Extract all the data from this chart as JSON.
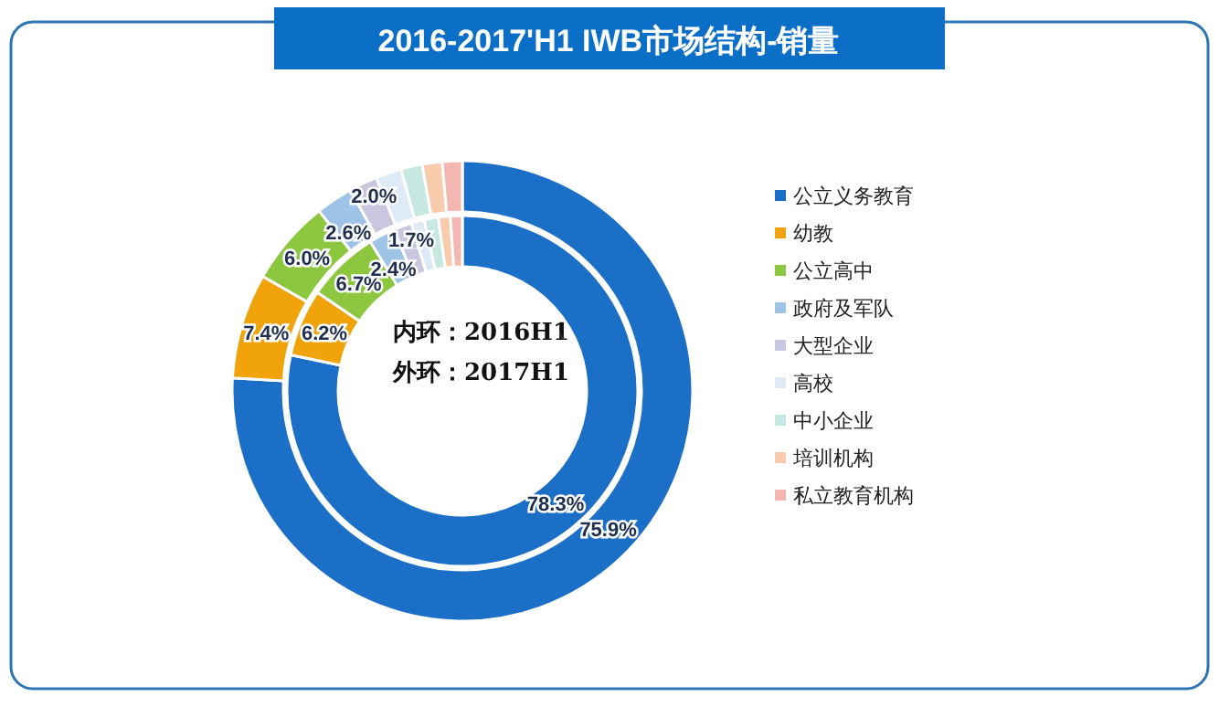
{
  "chart_data": {
    "type": "donut",
    "title": "2016-2017'H1 IWB市场结构-销量",
    "categories": [
      "公立义务教育",
      "幼教",
      "公立高中",
      "政府及军队",
      "大型企业",
      "高校",
      "中小企业",
      "培训机构",
      "私立教育机构"
    ],
    "colors": [
      "#1b6fc6",
      "#f0a30a",
      "#8dc63f",
      "#9dc3e6",
      "#c9c6e0",
      "#deebf7",
      "#c6e8e0",
      "#f8cbad",
      "#f4b6b0"
    ],
    "series": [
      {
        "values": [
          78.3,
          6.2,
          6.7,
          2.4,
          1.7,
          1.2,
          1.3,
          1.1,
          1.1
        ],
        "value_labels": [
          "78.3%",
          "6.2%",
          "6.7%",
          "2.4%",
          "1.7%",
          null,
          null,
          null,
          null
        ]
      },
      {
        "values": [
          75.9,
          7.4,
          6.0,
          2.6,
          2.0,
          1.8,
          1.5,
          1.4,
          1.4
        ],
        "value_labels": [
          "75.9%",
          "7.4%",
          "6.0%",
          "2.6%",
          "2.0%",
          null,
          null,
          null,
          null
        ]
      }
    ],
    "annotations": [
      "内环：2016H1",
      "外环：2017H1"
    ],
    "legend": "right"
  }
}
